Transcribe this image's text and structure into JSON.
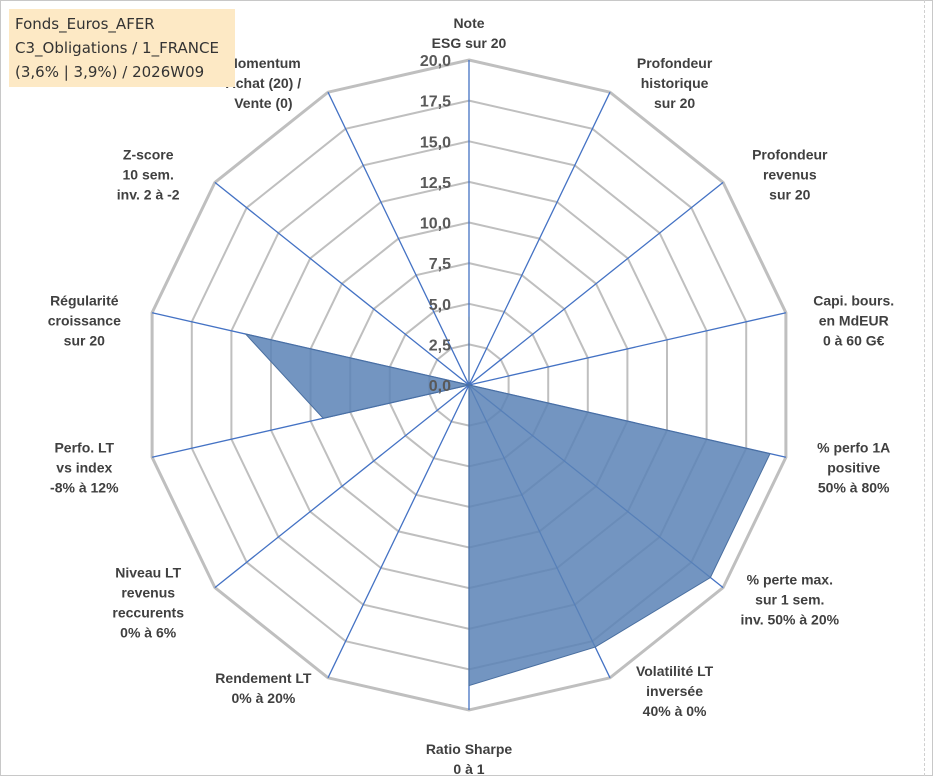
{
  "title": {
    "lines": [
      "Fonds_Euros_AFER",
      "C3_Obligations / 1_FRANCE",
      "(3,6% | 3,9%) / 2026W09"
    ]
  },
  "colors": {
    "grid": "#bfbfbf",
    "spoke": "#4472c4",
    "fill": "#5b82b6",
    "tick_text": "#595959",
    "axis_text": "#404040",
    "title_bg": "#fde9c5"
  },
  "chart_data": {
    "type": "radar",
    "title": "",
    "rlim": [
      0,
      20
    ],
    "r_step": 2.5,
    "tick_labels": [
      "0,0",
      "2,5",
      "5,0",
      "7,5",
      "10,0",
      "12,5",
      "15,0",
      "17,5",
      "20,0"
    ],
    "categories": [
      "Note ESG sur 20",
      "Profondeur historique sur 20",
      "Profondeur revenus sur 20",
      "Capi. bours. en MdEUR 0 à 60 G€",
      "% perfo 1A positive 50% à 80%",
      "% perte max. sur 1 sem. inv. 50% à 20%",
      "Volatilité LT inversée 40% à 0%",
      "Ratio Sharpe 0 à 1",
      "Rendement LT 0% à 20%",
      "Niveau LT revenus reccurents 0% à 6%",
      "Perfo. LT vs index -8% à 12%",
      "Régularité croissance sur 20",
      "Z-score 10 sem. inv. 2 à -2",
      "Momentum Achat (20) / Vente (0)"
    ],
    "category_lines": [
      [
        "Note",
        "ESG sur 20"
      ],
      [
        "Profondeur",
        "historique",
        "sur 20"
      ],
      [
        "Profondeur",
        "revenus",
        "sur 20"
      ],
      [
        "Capi. bours.",
        "en MdEUR",
        "0 à 60 G€"
      ],
      [
        "% perfo 1A",
        "positive",
        "50% à 80%"
      ],
      [
        "% perte max.",
        "sur 1 sem.",
        "inv. 50% à 20%"
      ],
      [
        "Volatilité LT",
        "inversée",
        "40% à 0%"
      ],
      [
        "Ratio Sharpe",
        "0 à 1"
      ],
      [
        "Rendement LT",
        "0% à 20%"
      ],
      [
        "Niveau LT",
        "revenus",
        "reccurents",
        "0% à 6%"
      ],
      [
        "Perfo. LT",
        "vs index",
        "-8% à 12%"
      ],
      [
        "Régularité",
        "croissance",
        "sur 20"
      ],
      [
        "Z-score",
        "10 sem.",
        "inv. 2 à -2"
      ],
      [
        "Momentum",
        "Achat (20) /",
        "Vente (0)"
      ]
    ],
    "series": [
      {
        "name": "Fonds_Euros_AFER",
        "values": [
          4.2,
          0,
          0,
          0,
          19.0,
          19.0,
          17.9,
          18.5,
          0,
          0,
          9.2,
          14.1,
          0,
          0
        ]
      }
    ]
  }
}
